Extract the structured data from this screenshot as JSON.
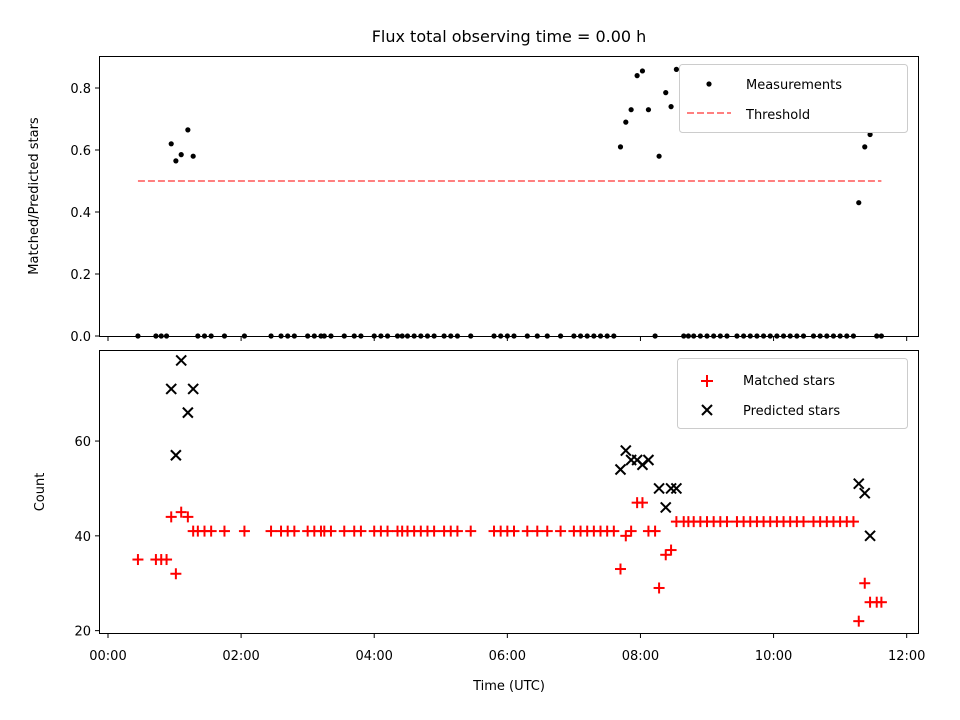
{
  "chart_data": [
    {
      "type": "scatter",
      "title": "Flux total observing time = 0.00 h",
      "xlabel": "",
      "ylabel": "Matched/Predicted stars",
      "ylim": [
        0,
        0.9
      ],
      "yticks": [
        0,
        0.2,
        0.4,
        0.6,
        0.8
      ],
      "ytick_labels": [
        "0.0",
        "0.2",
        "0.4",
        "0.6",
        "0.8"
      ],
      "xlim": [
        -0.12,
        12.17
      ],
      "xticks": [
        0,
        2,
        4,
        6,
        8,
        10,
        12
      ],
      "grid": false,
      "legend": "top-right",
      "series": [
        {
          "name": "Measurements",
          "marker": "dot",
          "color": "#000000",
          "points": [
            [
              0.95,
              0.62
            ],
            [
              1.02,
              0.565
            ],
            [
              1.1,
              0.585
            ],
            [
              1.2,
              0.665
            ],
            [
              1.28,
              0.58
            ],
            [
              7.7,
              0.61
            ],
            [
              7.78,
              0.69
            ],
            [
              7.86,
              0.73
            ],
            [
              7.95,
              0.84
            ],
            [
              8.03,
              0.855
            ],
            [
              8.12,
              0.73
            ],
            [
              8.28,
              0.58
            ],
            [
              8.38,
              0.785
            ],
            [
              8.46,
              0.74
            ],
            [
              8.54,
              0.86
            ],
            [
              11.28,
              0.43
            ],
            [
              11.37,
              0.61
            ],
            [
              11.45,
              0.65
            ],
            [
              0.45,
              0
            ],
            [
              0.72,
              0
            ],
            [
              0.8,
              0
            ],
            [
              0.88,
              0
            ],
            [
              1.35,
              0
            ],
            [
              1.45,
              0
            ],
            [
              1.55,
              0
            ],
            [
              1.75,
              0
            ],
            [
              2.05,
              0
            ],
            [
              2.45,
              0
            ],
            [
              2.6,
              0
            ],
            [
              2.7,
              0
            ],
            [
              2.8,
              0
            ],
            [
              3.0,
              0
            ],
            [
              3.1,
              0
            ],
            [
              3.2,
              0
            ],
            [
              3.25,
              0
            ],
            [
              3.35,
              0
            ],
            [
              3.55,
              0
            ],
            [
              3.7,
              0
            ],
            [
              3.8,
              0
            ],
            [
              4.0,
              0
            ],
            [
              4.1,
              0
            ],
            [
              4.2,
              0
            ],
            [
              4.35,
              0
            ],
            [
              4.42,
              0
            ],
            [
              4.5,
              0
            ],
            [
              4.6,
              0
            ],
            [
              4.7,
              0
            ],
            [
              4.8,
              0
            ],
            [
              4.9,
              0
            ],
            [
              5.05,
              0
            ],
            [
              5.15,
              0
            ],
            [
              5.25,
              0
            ],
            [
              5.45,
              0
            ],
            [
              5.8,
              0
            ],
            [
              5.9,
              0
            ],
            [
              6.0,
              0
            ],
            [
              6.1,
              0
            ],
            [
              6.3,
              0
            ],
            [
              6.45,
              0
            ],
            [
              6.6,
              0
            ],
            [
              6.8,
              0
            ],
            [
              7.0,
              0
            ],
            [
              7.1,
              0
            ],
            [
              7.2,
              0
            ],
            [
              7.3,
              0
            ],
            [
              7.4,
              0
            ],
            [
              7.5,
              0
            ],
            [
              7.6,
              0
            ],
            [
              8.22,
              0
            ],
            [
              8.65,
              0
            ],
            [
              8.72,
              0
            ],
            [
              8.8,
              0
            ],
            [
              8.9,
              0
            ],
            [
              9.0,
              0
            ],
            [
              9.1,
              0
            ],
            [
              9.2,
              0
            ],
            [
              9.3,
              0
            ],
            [
              9.45,
              0
            ],
            [
              9.55,
              0
            ],
            [
              9.65,
              0
            ],
            [
              9.75,
              0
            ],
            [
              9.85,
              0
            ],
            [
              9.95,
              0
            ],
            [
              10.05,
              0
            ],
            [
              10.15,
              0
            ],
            [
              10.25,
              0
            ],
            [
              10.35,
              0
            ],
            [
              10.45,
              0
            ],
            [
              10.6,
              0
            ],
            [
              10.7,
              0
            ],
            [
              10.8,
              0
            ],
            [
              10.9,
              0
            ],
            [
              11.0,
              0
            ],
            [
              11.1,
              0
            ],
            [
              11.2,
              0
            ],
            [
              11.55,
              0
            ],
            [
              11.62,
              0
            ]
          ]
        },
        {
          "name": "Threshold",
          "style": "dashed-line",
          "color": "#ff7f7f",
          "x": [
            0.45,
            11.62
          ],
          "y": [
            0.5,
            0.5
          ]
        }
      ]
    },
    {
      "type": "scatter",
      "title": "",
      "xlabel": "Time (UTC)",
      "ylabel": "Count",
      "ylim": [
        19.5,
        79
      ],
      "yticks": [
        20,
        40,
        60
      ],
      "ytick_labels": [
        "20",
        "40",
        "60"
      ],
      "xlim": [
        -0.12,
        12.17
      ],
      "xticks": [
        0,
        2,
        4,
        6,
        8,
        10,
        12
      ],
      "xtick_labels": [
        "00:00",
        "02:00",
        "04:00",
        "06:00",
        "08:00",
        "10:00",
        "12:00"
      ],
      "grid": false,
      "legend": "top-right",
      "series": [
        {
          "name": "Matched stars",
          "marker": "plus",
          "color": "#ff0000",
          "points": [
            [
              0.45,
              35
            ],
            [
              0.72,
              35
            ],
            [
              0.8,
              35
            ],
            [
              0.88,
              35
            ],
            [
              0.95,
              44
            ],
            [
              1.02,
              32
            ],
            [
              1.1,
              45
            ],
            [
              1.2,
              44
            ],
            [
              1.28,
              41
            ],
            [
              1.35,
              41
            ],
            [
              1.45,
              41
            ],
            [
              1.55,
              41
            ],
            [
              1.75,
              41
            ],
            [
              2.05,
              41
            ],
            [
              2.45,
              41
            ],
            [
              2.6,
              41
            ],
            [
              2.7,
              41
            ],
            [
              2.8,
              41
            ],
            [
              3.0,
              41
            ],
            [
              3.1,
              41
            ],
            [
              3.2,
              41
            ],
            [
              3.25,
              41
            ],
            [
              3.35,
              41
            ],
            [
              3.55,
              41
            ],
            [
              3.7,
              41
            ],
            [
              3.8,
              41
            ],
            [
              4.0,
              41
            ],
            [
              4.1,
              41
            ],
            [
              4.2,
              41
            ],
            [
              4.35,
              41
            ],
            [
              4.42,
              41
            ],
            [
              4.5,
              41
            ],
            [
              4.6,
              41
            ],
            [
              4.7,
              41
            ],
            [
              4.8,
              41
            ],
            [
              4.9,
              41
            ],
            [
              5.05,
              41
            ],
            [
              5.15,
              41
            ],
            [
              5.25,
              41
            ],
            [
              5.45,
              41
            ],
            [
              5.8,
              41
            ],
            [
              5.9,
              41
            ],
            [
              6.0,
              41
            ],
            [
              6.1,
              41
            ],
            [
              6.3,
              41
            ],
            [
              6.45,
              41
            ],
            [
              6.6,
              41
            ],
            [
              6.8,
              41
            ],
            [
              7.0,
              41
            ],
            [
              7.1,
              41
            ],
            [
              7.2,
              41
            ],
            [
              7.3,
              41
            ],
            [
              7.4,
              41
            ],
            [
              7.5,
              41
            ],
            [
              7.6,
              41
            ],
            [
              7.7,
              33
            ],
            [
              7.78,
              40
            ],
            [
              7.86,
              41
            ],
            [
              7.95,
              47
            ],
            [
              8.03,
              47
            ],
            [
              8.12,
              41
            ],
            [
              8.22,
              41
            ],
            [
              8.28,
              29
            ],
            [
              8.38,
              36
            ],
            [
              8.46,
              37
            ],
            [
              8.54,
              43
            ],
            [
              8.65,
              43
            ],
            [
              8.72,
              43
            ],
            [
              8.8,
              43
            ],
            [
              8.9,
              43
            ],
            [
              9.0,
              43
            ],
            [
              9.1,
              43
            ],
            [
              9.2,
              43
            ],
            [
              9.3,
              43
            ],
            [
              9.45,
              43
            ],
            [
              9.55,
              43
            ],
            [
              9.65,
              43
            ],
            [
              9.75,
              43
            ],
            [
              9.85,
              43
            ],
            [
              9.95,
              43
            ],
            [
              10.05,
              43
            ],
            [
              10.15,
              43
            ],
            [
              10.25,
              43
            ],
            [
              10.35,
              43
            ],
            [
              10.45,
              43
            ],
            [
              10.6,
              43
            ],
            [
              10.7,
              43
            ],
            [
              10.8,
              43
            ],
            [
              10.9,
              43
            ],
            [
              11.0,
              43
            ],
            [
              11.1,
              43
            ],
            [
              11.2,
              43
            ],
            [
              11.28,
              22
            ],
            [
              11.37,
              30
            ],
            [
              11.45,
              26
            ],
            [
              11.55,
              26
            ],
            [
              11.62,
              26
            ]
          ]
        },
        {
          "name": "Predicted stars",
          "marker": "x",
          "color": "#000000",
          "points": [
            [
              0.95,
              71
            ],
            [
              1.02,
              57
            ],
            [
              1.1,
              77
            ],
            [
              1.2,
              66
            ],
            [
              1.28,
              71
            ],
            [
              7.7,
              54
            ],
            [
              7.78,
              58
            ],
            [
              7.86,
              56
            ],
            [
              7.95,
              56
            ],
            [
              8.03,
              55
            ],
            [
              8.12,
              56
            ],
            [
              8.28,
              50
            ],
            [
              8.38,
              46
            ],
            [
              8.46,
              50
            ],
            [
              8.54,
              50
            ],
            [
              11.28,
              51
            ],
            [
              11.37,
              49
            ],
            [
              11.45,
              40
            ]
          ]
        }
      ]
    }
  ]
}
